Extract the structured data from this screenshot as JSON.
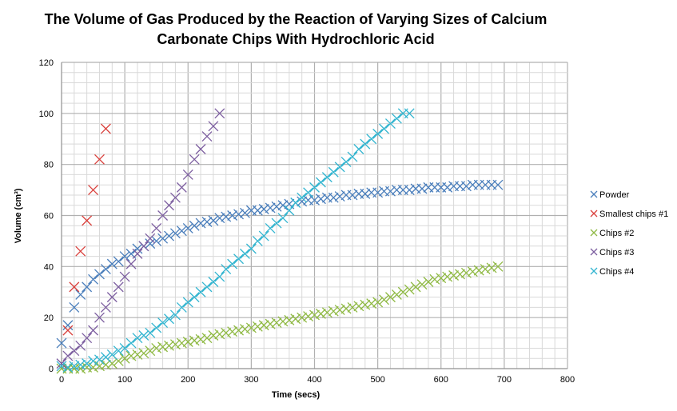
{
  "chart_data": {
    "type": "scatter",
    "title": [
      "The Volume of Gas Produced by the Reaction of Varying Sizes of Calcium",
      "Carbonate Chips With Hydrochloric Acid"
    ],
    "xlabel": "Time (secs)",
    "ylabel": "Volume (cm³)",
    "xlim": [
      0,
      800
    ],
    "ylim": [
      0,
      120
    ],
    "xticks": [
      0,
      100,
      200,
      300,
      400,
      500,
      600,
      700,
      800
    ],
    "yticks": [
      0,
      20,
      40,
      60,
      80,
      100,
      120
    ],
    "grid": true,
    "legend": "right",
    "series": [
      {
        "name": "Powder",
        "color": "#4a7ebb",
        "x0": 0,
        "dx": 10,
        "values": [
          10,
          17,
          24,
          29,
          32,
          35,
          37,
          39,
          41,
          42,
          44,
          45,
          47,
          48,
          49,
          50,
          51,
          52,
          53,
          54,
          55,
          56,
          57,
          57.5,
          58,
          59,
          59.5,
          60,
          60.5,
          61,
          62,
          62,
          62.5,
          63,
          63.5,
          64,
          64.5,
          65,
          65.5,
          66,
          66,
          66.5,
          67,
          67,
          67.5,
          68,
          68,
          68.5,
          68.5,
          69,
          69,
          69.5,
          69.5,
          70,
          70,
          70,
          70.5,
          70.5,
          71,
          71,
          71,
          71,
          71.5,
          71.5,
          71.5,
          72,
          72,
          72,
          72,
          72
        ]
      },
      {
        "name": "Smallest chips #1",
        "color": "#d9403c",
        "x0": 10,
        "dx": 10,
        "values": [
          15,
          32,
          46,
          58,
          70,
          82,
          94
        ]
      },
      {
        "name": "Chips #2",
        "color": "#8fb944",
        "x0": 0,
        "dx": 10,
        "values": [
          0,
          0,
          0,
          0,
          0.5,
          0.5,
          1,
          1.5,
          2,
          3,
          4,
          5,
          5.5,
          6,
          7,
          8,
          8.5,
          9,
          9.5,
          10,
          10.5,
          11,
          11.5,
          12,
          13,
          13.5,
          14,
          14.5,
          15,
          15.5,
          16,
          16.5,
          17,
          17.5,
          18,
          18.5,
          19,
          19.5,
          20,
          20.5,
          21,
          21.5,
          22,
          22.5,
          23,
          23.5,
          24,
          24.5,
          25,
          25.5,
          26,
          27,
          28,
          29,
          30,
          31,
          32,
          33,
          34,
          35,
          35.5,
          36,
          36.5,
          37,
          37.5,
          38,
          38.5,
          39,
          39.5,
          40
        ]
      },
      {
        "name": "Chips #3",
        "color": "#7d5fa0",
        "x0": 0,
        "dx": 10,
        "values": [
          2,
          5,
          7,
          9,
          12,
          15,
          20,
          24,
          28,
          32,
          36,
          41,
          45,
          48,
          51,
          55,
          60,
          64,
          67,
          71,
          76,
          82,
          86,
          91,
          95,
          100
        ]
      },
      {
        "name": "Chips #4",
        "color": "#33b5d0",
        "x0": 0,
        "dx": 10,
        "values": [
          1,
          0.5,
          1,
          1.5,
          2,
          3,
          3.5,
          4.5,
          5.5,
          7,
          8,
          10,
          12,
          13,
          14,
          16,
          18,
          19.5,
          21,
          24,
          26,
          28,
          30,
          32,
          34,
          36,
          39,
          41,
          43,
          45,
          47,
          50,
          52,
          55,
          57,
          59,
          62,
          65,
          67,
          69,
          71,
          73,
          75,
          77,
          79,
          81,
          83,
          86,
          88,
          90,
          92,
          94,
          96,
          98,
          100,
          100
        ]
      }
    ]
  }
}
